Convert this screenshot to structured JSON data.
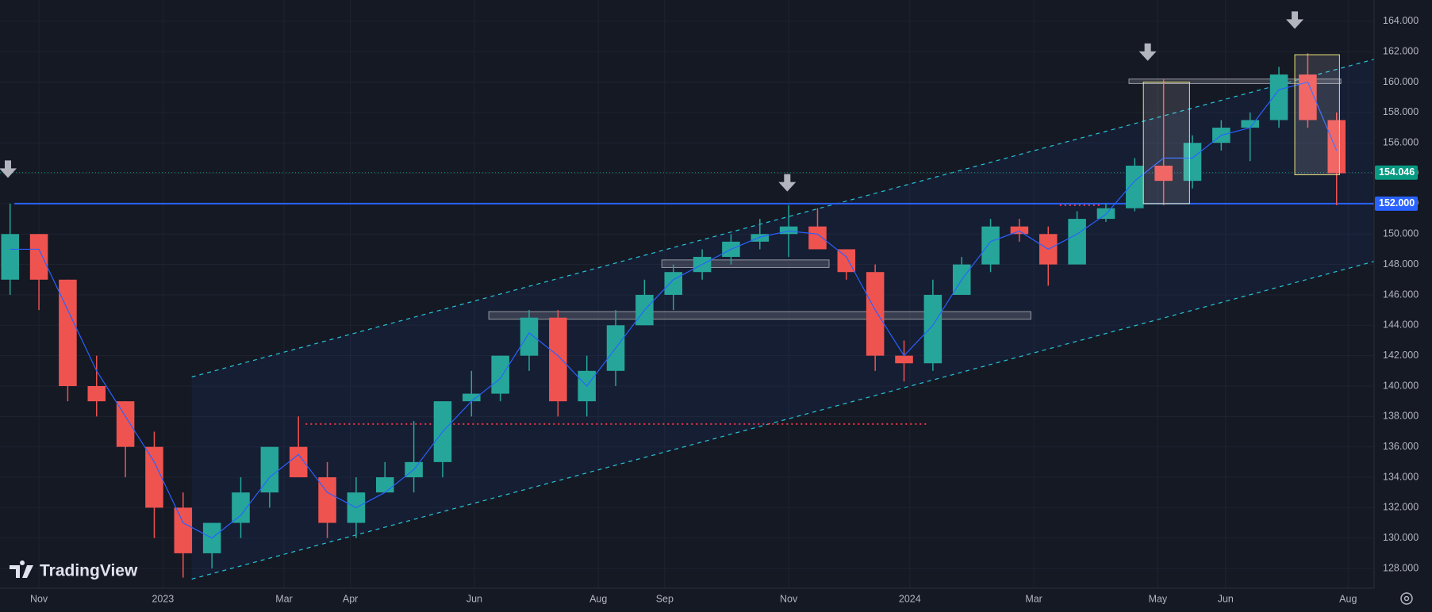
{
  "chart_data": {
    "type": "candlestick",
    "logo": "TradingView",
    "x": [
      -2,
      0,
      2,
      4,
      6,
      8,
      10,
      12,
      14,
      16,
      18,
      20,
      22,
      24,
      26,
      28,
      30,
      32,
      34,
      36,
      38,
      40,
      42,
      44,
      46,
      48,
      50,
      52,
      54,
      56,
      58,
      60,
      62,
      64,
      66,
      68,
      70,
      72,
      74,
      76,
      78,
      80,
      82,
      84,
      86,
      88,
      90
    ],
    "open": [
      147,
      150,
      147,
      140,
      139,
      136,
      132,
      129,
      131,
      133,
      136,
      134,
      131,
      133,
      134,
      135,
      139,
      139.5,
      142,
      144.5,
      139,
      141,
      144,
      146,
      147.5,
      148.5,
      149.5,
      150,
      150.5,
      149,
      147.5,
      142,
      141.5,
      146,
      148,
      150.5,
      150,
      148,
      151,
      151.7,
      154.5,
      153.5,
      156,
      157,
      157.5,
      160.5,
      157.5
    ],
    "high": [
      152,
      150,
      147,
      142,
      139,
      137,
      133,
      131,
      134,
      136,
      138,
      135,
      134,
      135,
      137.7,
      139,
      141,
      142,
      145,
      145,
      142,
      145,
      147,
      148,
      149,
      150,
      151,
      151.9,
      151.7,
      149,
      148,
      143,
      147,
      148.5,
      151,
      151,
      150.5,
      151.5,
      152,
      155,
      160.2,
      156.5,
      157.5,
      158,
      161,
      161.9,
      158
    ],
    "low": [
      146,
      145,
      139,
      138,
      134,
      130,
      127.4,
      128,
      130,
      132,
      134,
      130,
      130,
      133,
      133,
      134,
      138,
      139,
      141,
      138,
      138,
      140,
      144,
      145,
      147,
      148,
      149,
      148.5,
      149,
      147,
      141,
      140.3,
      141,
      146,
      147.5,
      149.5,
      146.6,
      148,
      150.8,
      151.5,
      151.9,
      153,
      155.5,
      154.8,
      157,
      157,
      151.9
    ],
    "close": [
      150,
      147,
      140,
      139,
      136,
      132,
      129,
      131,
      133,
      136,
      134,
      131,
      133,
      134,
      135,
      139,
      139.5,
      142,
      144.5,
      139,
      141,
      144,
      146,
      147.5,
      148.5,
      149.5,
      150,
      150.5,
      149,
      147.5,
      142,
      141.5,
      146,
      148,
      150.5,
      150,
      148,
      151,
      151.7,
      154.5,
      153.5,
      156,
      157,
      157.5,
      160.5,
      157.5,
      154
    ],
    "up_color": "#26a69a",
    "down_color": "#ef5350",
    "ma": {
      "values": [
        149,
        149,
        145,
        141,
        138,
        135,
        131,
        130,
        131.5,
        134,
        135.5,
        133,
        132,
        133,
        134.5,
        137,
        139,
        140.5,
        143.5,
        142,
        140,
        142.5,
        145,
        147,
        148,
        149,
        149.8,
        150.2,
        150,
        148.5,
        145,
        142,
        144,
        147,
        149.5,
        150.2,
        149,
        150,
        151.3,
        153.5,
        155,
        155,
        156.5,
        157,
        159.5,
        160,
        155.5
      ],
      "color": "#2962ff"
    },
    "xlim": [
      -2.7,
      92.6
    ],
    "ylim": [
      126.7,
      165.4
    ],
    "xticks": [
      {
        "value": 0,
        "label": "Nov"
      },
      {
        "value": 8.6,
        "label": "2023"
      },
      {
        "value": 17,
        "label": "Mar"
      },
      {
        "value": 21.6,
        "label": "Apr"
      },
      {
        "value": 30.2,
        "label": "Jun"
      },
      {
        "value": 38.8,
        "label": "Aug"
      },
      {
        "value": 43.4,
        "label": "Sep"
      },
      {
        "value": 52,
        "label": "Nov"
      },
      {
        "value": 60.4,
        "label": "2024"
      },
      {
        "value": 69,
        "label": "Mar"
      },
      {
        "value": 77.6,
        "label": "May"
      },
      {
        "value": 82.3,
        "label": "Jun"
      },
      {
        "value": 90.8,
        "label": "Aug"
      }
    ],
    "yticks": [
      {
        "value": 128,
        "label": "128.000"
      },
      {
        "value": 130,
        "label": "130.000"
      },
      {
        "value": 132,
        "label": "132.000"
      },
      {
        "value": 134,
        "label": "134.000"
      },
      {
        "value": 136,
        "label": "136.000"
      },
      {
        "value": 138,
        "label": "138.000"
      },
      {
        "value": 140,
        "label": "140.000"
      },
      {
        "value": 142,
        "label": "142.000"
      },
      {
        "value": 144,
        "label": "144.000"
      },
      {
        "value": 146,
        "label": "146.000"
      },
      {
        "value": 148,
        "label": "148.000"
      },
      {
        "value": 150,
        "label": "150.000"
      },
      {
        "value": 152,
        "label": "152.000"
      },
      {
        "value": 154,
        "label": "154.000"
      },
      {
        "value": 156,
        "label": "156.000"
      },
      {
        "value": 158,
        "label": "158.000"
      },
      {
        "value": 160,
        "label": "160.000"
      },
      {
        "value": 162,
        "label": "162.000"
      },
      {
        "value": 164,
        "label": "164.000"
      }
    ],
    "grid": true,
    "last_price": 154.046,
    "last_price_color": "#089981",
    "level": {
      "value": 152,
      "label": "152.000",
      "color": "#2962ff",
      "x_start": -1.7
    },
    "channel": {
      "upper": [
        [
          10.6,
          140.6
        ],
        [
          92.6,
          161.5
        ]
      ],
      "lower": [
        [
          10.6,
          127.3
        ],
        [
          92.6,
          148.2
        ]
      ],
      "color": "#26c6da"
    },
    "zones": [
      {
        "x": [
          31.2,
          68.8
        ],
        "y": [
          144.4,
          144.9
        ]
      },
      {
        "x": [
          43.2,
          54.8
        ],
        "y": [
          147.8,
          148.3
        ]
      },
      {
        "x": [
          75.6,
          90.3
        ],
        "y": [
          159.9,
          160.2
        ]
      }
    ],
    "boxes": [
      {
        "x": [
          76.6,
          79.8
        ],
        "y": [
          152,
          160
        ]
      },
      {
        "x": [
          87.1,
          90.2
        ],
        "y": [
          153.9,
          161.8
        ]
      }
    ],
    "dotted_levels": [
      {
        "value": 137.5,
        "x": [
          18.5,
          61.6
        ]
      },
      {
        "value": 151.9,
        "x": [
          70.8,
          73.6
        ]
      }
    ],
    "arrows": [
      {
        "x": -2.15,
        "y": 153.7
      },
      {
        "x": 51.9,
        "y": 152.8
      },
      {
        "x": 76.9,
        "y": 161.4
      },
      {
        "x": 87.1,
        "y": 163.5
      }
    ]
  }
}
